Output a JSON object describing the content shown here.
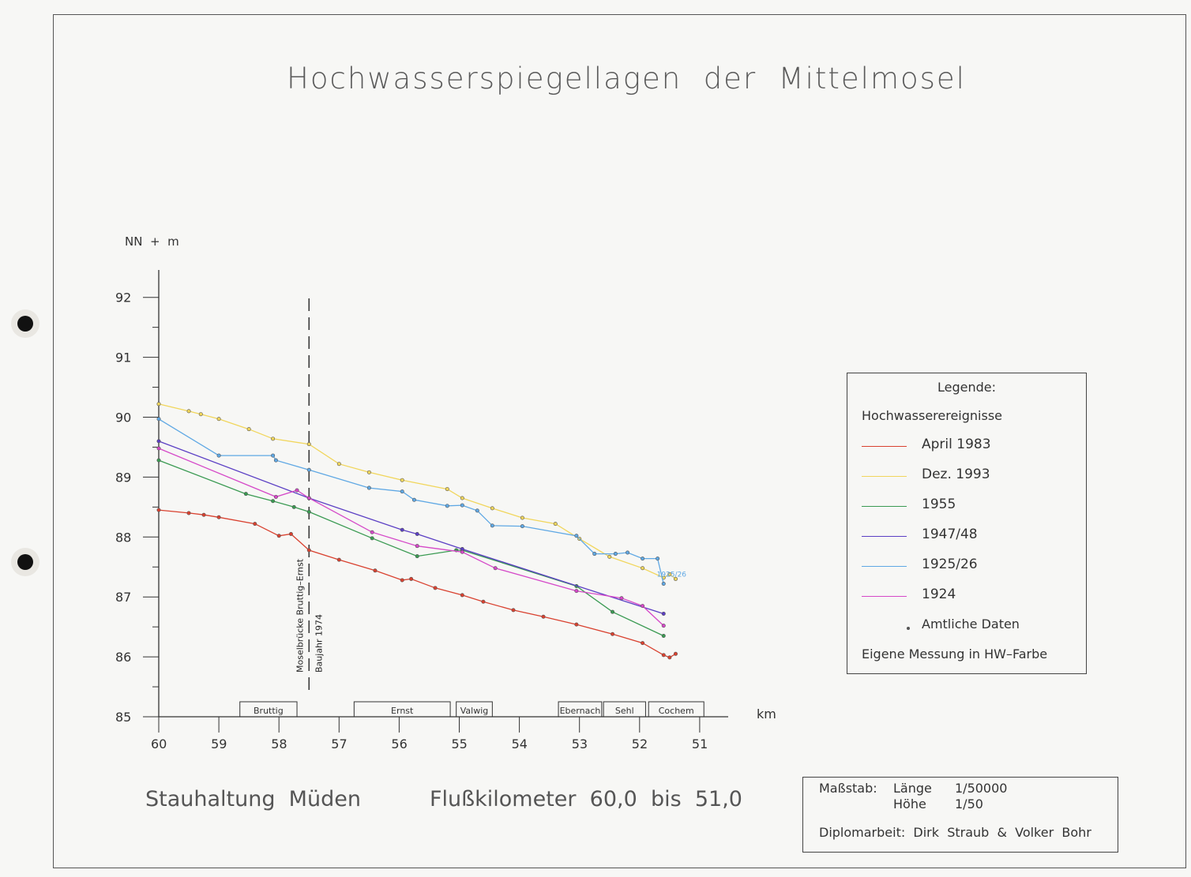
{
  "title": "Hochwasserspiegellagen  der  Mittelmosel",
  "y_unit_label": "NN  +  m",
  "legend": {
    "title": "Legende:",
    "subtitle": "Hochwasserereignisse",
    "items": [
      {
        "label": "April  1983",
        "color": "#d9412f"
      },
      {
        "label": "Dez.  1993",
        "color": "#f1d65c"
      },
      {
        "label": "1955",
        "color": "#3a9a52"
      },
      {
        "label": "1947/48",
        "color": "#5b3fc4"
      },
      {
        "label": "1925/26",
        "color": "#5fa8e4"
      },
      {
        "label": "1924",
        "color": "#d548c8"
      }
    ],
    "official_data_label": "Amtliche  Daten",
    "own_measurement_label": "Eigene  Messung  in  HW–Farbe"
  },
  "footer": {
    "left": "Stauhaltung  Müden",
    "middle": "Flußkilometer  60,0  bis  51,0"
  },
  "info": {
    "scale_label": "Maßstab:",
    "length_label": "Länge",
    "length_value": "1/50000",
    "height_label": "Höhe",
    "height_value": "1/50",
    "thesis": "Diplomarbeit:  Dirk  Straub  &  Volker  Bohr"
  },
  "chart_data": {
    "type": "line",
    "xlabel": "km",
    "ylabel": "NN  +  m",
    "xlim": [
      60,
      50.5
    ],
    "ylim": [
      85,
      92
    ],
    "x_ticks": [
      60,
      59,
      58,
      57,
      56,
      55,
      54,
      53,
      52,
      51
    ],
    "y_ticks": [
      85,
      86,
      87,
      88,
      89,
      90,
      91,
      92
    ],
    "bridge": {
      "km": 57.5,
      "label1": "Moselbrücke  Bruttig–Ernst",
      "label2": "Baujahr  1974"
    },
    "towns": [
      {
        "name": "Bruttig",
        "from": 58.65,
        "to": 57.7
      },
      {
        "name": "Ernst",
        "from": 56.75,
        "to": 55.15
      },
      {
        "name": "Valwig",
        "from": 55.05,
        "to": 54.45
      },
      {
        "name": "Ebernach",
        "from": 53.35,
        "to": 52.63
      },
      {
        "name": "Sehl",
        "from": 52.6,
        "to": 51.9
      },
      {
        "name": "Cochem",
        "from": 51.85,
        "to": 50.93
      }
    ],
    "annotation": {
      "text": "1925/26",
      "x": 51.45,
      "y": 87.5
    },
    "series": [
      {
        "name": "April  1983",
        "color": "#d9412f",
        "x": [
          60,
          59.5,
          59.25,
          59,
          58.4,
          58,
          57.8,
          57.5,
          57.0,
          56.4,
          55.95,
          55.8,
          55.4,
          54.95,
          54.6,
          54.1,
          53.6,
          53.05,
          52.45,
          51.95,
          51.6,
          51.5,
          51.4
        ],
        "y": [
          88.45,
          88.4,
          88.37,
          88.33,
          88.22,
          88.02,
          88.05,
          87.78,
          87.62,
          87.44,
          87.28,
          87.3,
          87.15,
          87.03,
          86.92,
          86.78,
          86.67,
          86.54,
          86.38,
          86.23,
          86.03,
          85.99,
          86.05
        ]
      },
      {
        "name": "Dez.  1993",
        "color": "#f1d65c",
        "x": [
          60,
          59.5,
          59.3,
          59,
          58.5,
          58.1,
          57.5,
          57.0,
          56.5,
          55.95,
          55.2,
          54.95,
          54.45,
          53.95,
          53.4,
          53.0,
          52.5,
          51.95,
          51.6,
          51.5,
          51.4
        ],
        "y": [
          90.22,
          90.1,
          90.05,
          89.97,
          89.8,
          89.64,
          89.55,
          89.22,
          89.08,
          88.95,
          88.8,
          88.65,
          88.48,
          88.32,
          88.22,
          87.97,
          87.67,
          87.48,
          87.32,
          87.38,
          87.3
        ]
      },
      {
        "name": "1955",
        "color": "#3a9a52",
        "x": [
          60,
          58.55,
          58.1,
          57.75,
          57.5,
          56.45,
          55.7,
          55.05,
          54.95,
          53.05,
          52.45,
          51.6
        ],
        "y": [
          89.28,
          88.72,
          88.6,
          88.5,
          88.42,
          87.98,
          87.68,
          87.78,
          87.78,
          87.18,
          86.75,
          86.35
        ]
      },
      {
        "name": "1947/48",
        "color": "#5b3fc4",
        "x": [
          60,
          57.5,
          55.95,
          55.7,
          54.95,
          51.6
        ],
        "y": [
          89.6,
          88.65,
          88.12,
          88.05,
          87.8,
          86.72
        ]
      },
      {
        "name": "1925/26",
        "color": "#5fa8e4",
        "x": [
          60,
          59,
          58.1,
          58.05,
          57.5,
          56.5,
          55.95,
          55.75,
          55.2,
          54.95,
          54.7,
          54.45,
          53.95,
          53.05,
          52.75,
          52.4,
          52.2,
          51.95,
          51.7,
          51.6
        ],
        "y": [
          89.97,
          89.36,
          89.36,
          89.28,
          89.12,
          88.82,
          88.76,
          88.62,
          88.52,
          88.53,
          88.44,
          88.19,
          88.18,
          88.02,
          87.72,
          87.72,
          87.74,
          87.64,
          87.64,
          87.22
        ]
      },
      {
        "name": "1924",
        "color": "#d548c8",
        "x": [
          60,
          58.05,
          57.7,
          57.5,
          56.45,
          55.7,
          54.95,
          54.4,
          53.05,
          52.3,
          51.95,
          51.6
        ],
        "y": [
          89.48,
          88.67,
          88.78,
          88.65,
          88.08,
          87.85,
          87.75,
          87.48,
          87.1,
          86.98,
          86.85,
          86.52
        ]
      }
    ]
  }
}
